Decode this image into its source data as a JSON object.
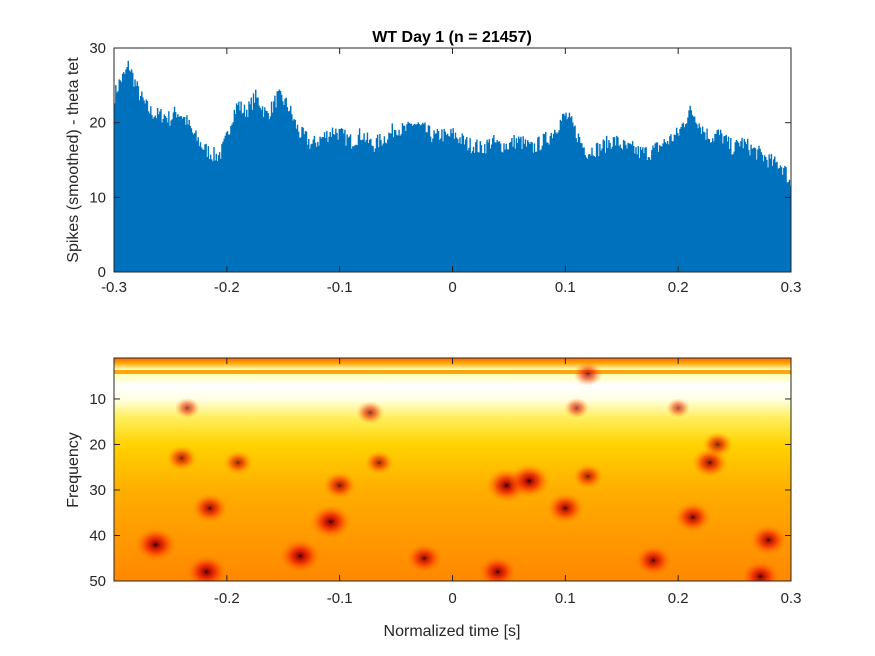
{
  "chart_data": [
    {
      "type": "bar",
      "title": "WT Day 1 (n = 21457)",
      "xlabel": "",
      "ylabel": "Spikes (smoothed) - theta tet",
      "xlim": [
        -0.3,
        0.3
      ],
      "ylim": [
        0,
        30
      ],
      "x_ticks": [
        -0.3,
        -0.2,
        -0.1,
        0,
        0.1,
        0.2,
        0.3
      ],
      "x_tick_labels": [
        "-0.3",
        "-0.2",
        "-0.1",
        "0",
        "0.1",
        "0.2",
        "0.3"
      ],
      "y_ticks": [
        0,
        10,
        20,
        30
      ],
      "y_tick_labels": [
        "0",
        "10",
        "20",
        "30"
      ],
      "bar_color": "#0072BD",
      "envelope": [
        [
          -0.3,
          23.5
        ],
        [
          -0.295,
          25.5
        ],
        [
          -0.29,
          26.5
        ],
        [
          -0.287,
          27.8
        ],
        [
          -0.283,
          26
        ],
        [
          -0.278,
          24
        ],
        [
          -0.273,
          22.5
        ],
        [
          -0.268,
          21.5
        ],
        [
          -0.262,
          21
        ],
        [
          -0.256,
          21
        ],
        [
          -0.25,
          20.5
        ],
        [
          -0.245,
          21.5
        ],
        [
          -0.24,
          21
        ],
        [
          -0.235,
          20
        ],
        [
          -0.23,
          18.5
        ],
        [
          -0.225,
          17.5
        ],
        [
          -0.22,
          16.5
        ],
        [
          -0.215,
          16
        ],
        [
          -0.21,
          15.5
        ],
        [
          -0.205,
          16
        ],
        [
          -0.2,
          18
        ],
        [
          -0.195,
          21
        ],
        [
          -0.19,
          22.5
        ],
        [
          -0.185,
          21.5
        ],
        [
          -0.18,
          22
        ],
        [
          -0.175,
          23.5
        ],
        [
          -0.17,
          22.5
        ],
        [
          -0.165,
          21
        ],
        [
          -0.16,
          22
        ],
        [
          -0.155,
          23.5
        ],
        [
          -0.15,
          23
        ],
        [
          -0.145,
          22
        ],
        [
          -0.14,
          20
        ],
        [
          -0.135,
          18.5
        ],
        [
          -0.13,
          18
        ],
        [
          -0.125,
          17
        ],
        [
          -0.12,
          17.5
        ],
        [
          -0.115,
          18
        ],
        [
          -0.11,
          18.5
        ],
        [
          -0.105,
          19
        ],
        [
          -0.1,
          18.5
        ],
        [
          -0.095,
          18
        ],
        [
          -0.09,
          17.5
        ],
        [
          -0.085,
          18
        ],
        [
          -0.08,
          18.5
        ],
        [
          -0.075,
          17.5
        ],
        [
          -0.07,
          17
        ],
        [
          -0.065,
          17.5
        ],
        [
          -0.06,
          18
        ],
        [
          -0.055,
          18.5
        ],
        [
          -0.05,
          19.5
        ],
        [
          -0.045,
          19
        ],
        [
          -0.04,
          19
        ],
        [
          -0.035,
          20
        ],
        [
          -0.03,
          19.5
        ],
        [
          -0.025,
          19
        ],
        [
          -0.02,
          18.5
        ],
        [
          -0.015,
          18
        ],
        [
          -0.01,
          18.5
        ],
        [
          -0.005,
          18
        ],
        [
          0.0,
          18.5
        ],
        [
          0.005,
          18
        ],
        [
          0.01,
          17.5
        ],
        [
          0.015,
          17
        ],
        [
          0.02,
          17
        ],
        [
          0.025,
          16.5
        ],
        [
          0.03,
          17
        ],
        [
          0.035,
          17.5
        ],
        [
          0.04,
          17
        ],
        [
          0.045,
          17
        ],
        [
          0.05,
          17
        ],
        [
          0.055,
          17.5
        ],
        [
          0.06,
          17.5
        ],
        [
          0.065,
          17
        ],
        [
          0.07,
          16.5
        ],
        [
          0.075,
          17
        ],
        [
          0.08,
          17.5
        ],
        [
          0.085,
          18
        ],
        [
          0.09,
          19
        ],
        [
          0.095,
          20
        ],
        [
          0.1,
          21
        ],
        [
          0.105,
          20
        ],
        [
          0.11,
          18.5
        ],
        [
          0.115,
          17
        ],
        [
          0.12,
          16
        ],
        [
          0.125,
          16.5
        ],
        [
          0.13,
          16.5
        ],
        [
          0.135,
          17
        ],
        [
          0.14,
          17.5
        ],
        [
          0.145,
          17.5
        ],
        [
          0.15,
          17
        ],
        [
          0.155,
          16.5
        ],
        [
          0.16,
          16.5
        ],
        [
          0.165,
          16
        ],
        [
          0.17,
          16
        ],
        [
          0.175,
          16
        ],
        [
          0.18,
          16.5
        ],
        [
          0.185,
          17
        ],
        [
          0.19,
          17.5
        ],
        [
          0.195,
          18
        ],
        [
          0.2,
          18.5
        ],
        [
          0.205,
          20
        ],
        [
          0.21,
          21.5
        ],
        [
          0.215,
          21
        ],
        [
          0.22,
          19.5
        ],
        [
          0.225,
          18.5
        ],
        [
          0.23,
          18
        ],
        [
          0.235,
          18.5
        ],
        [
          0.24,
          18
        ],
        [
          0.245,
          17
        ],
        [
          0.25,
          16.5
        ],
        [
          0.255,
          17.5
        ],
        [
          0.26,
          17
        ],
        [
          0.265,
          16.5
        ],
        [
          0.27,
          16
        ],
        [
          0.275,
          15.5
        ],
        [
          0.28,
          15
        ],
        [
          0.285,
          14.5
        ],
        [
          0.29,
          14.5
        ],
        [
          0.295,
          13.5
        ],
        [
          0.3,
          11.5
        ]
      ]
    },
    {
      "type": "heatmap",
      "title": "",
      "xlabel": "Normalized time [s]",
      "ylabel": "Frequency",
      "xlim": [
        -0.3,
        0.3
      ],
      "ylim": [
        1,
        50
      ],
      "y_reversed": true,
      "colormap": "hot",
      "x_ticks": [
        -0.2,
        -0.1,
        0,
        0.1,
        0.2,
        0.3
      ],
      "x_tick_labels": [
        "-0.2",
        "-0.1",
        "0",
        "0.1",
        "0.2",
        "0.3"
      ],
      "y_ticks": [
        10,
        20,
        30,
        40,
        50
      ],
      "y_tick_labels": [
        "10",
        "20",
        "30",
        "40",
        "50"
      ],
      "bands": [
        {
          "frequency": 1,
          "color": "#FF6A00"
        },
        {
          "frequency": 2,
          "color": "#FF9F00"
        },
        {
          "frequency": 3.5,
          "color": "#FFFFB0"
        },
        {
          "frequency": 4.5,
          "color": "#FFFFB0"
        },
        {
          "frequency": 7,
          "color": "#FFFFFF"
        },
        {
          "frequency": 10,
          "color": "#FFFFE6"
        },
        {
          "frequency": 14,
          "color": "#FFF060"
        },
        {
          "frequency": 20,
          "color": "#FFD200"
        },
        {
          "frequency": 30,
          "color": "#FFAE00"
        },
        {
          "frequency": 40,
          "color": "#FF9A00"
        },
        {
          "frequency": 50,
          "color": "#FF8800"
        }
      ],
      "hotspots": [
        {
          "x": -0.263,
          "y": 42,
          "intensity": 1
        },
        {
          "x": -0.218,
          "y": 48,
          "intensity": 1
        },
        {
          "x": -0.215,
          "y": 34,
          "intensity": 0.8
        },
        {
          "x": -0.24,
          "y": 23,
          "intensity": 0.6
        },
        {
          "x": -0.19,
          "y": 24,
          "intensity": 0.55
        },
        {
          "x": -0.135,
          "y": 44.5,
          "intensity": 1
        },
        {
          "x": -0.108,
          "y": 37,
          "intensity": 1
        },
        {
          "x": -0.1,
          "y": 29,
          "intensity": 0.7
        },
        {
          "x": -0.065,
          "y": 24,
          "intensity": 0.55
        },
        {
          "x": -0.073,
          "y": 13,
          "intensity": 0.5
        },
        {
          "x": -0.025,
          "y": 45,
          "intensity": 0.8
        },
        {
          "x": 0.04,
          "y": 48,
          "intensity": 0.9
        },
        {
          "x": 0.048,
          "y": 29,
          "intensity": 1
        },
        {
          "x": 0.068,
          "y": 28,
          "intensity": 1
        },
        {
          "x": 0.1,
          "y": 34,
          "intensity": 0.85
        },
        {
          "x": 0.12,
          "y": 27,
          "intensity": 0.6
        },
        {
          "x": 0.12,
          "y": 4.5,
          "intensity": 0.55
        },
        {
          "x": -0.235,
          "y": 12,
          "intensity": 0.4
        },
        {
          "x": 0.11,
          "y": 12,
          "intensity": 0.4
        },
        {
          "x": 0.2,
          "y": 12,
          "intensity": 0.35
        },
        {
          "x": 0.178,
          "y": 45.5,
          "intensity": 0.85
        },
        {
          "x": 0.213,
          "y": 36,
          "intensity": 0.85
        },
        {
          "x": 0.228,
          "y": 24,
          "intensity": 0.8
        },
        {
          "x": 0.235,
          "y": 20,
          "intensity": 0.6
        },
        {
          "x": 0.273,
          "y": 49,
          "intensity": 0.9
        },
        {
          "x": 0.28,
          "y": 41,
          "intensity": 0.85
        }
      ]
    }
  ]
}
